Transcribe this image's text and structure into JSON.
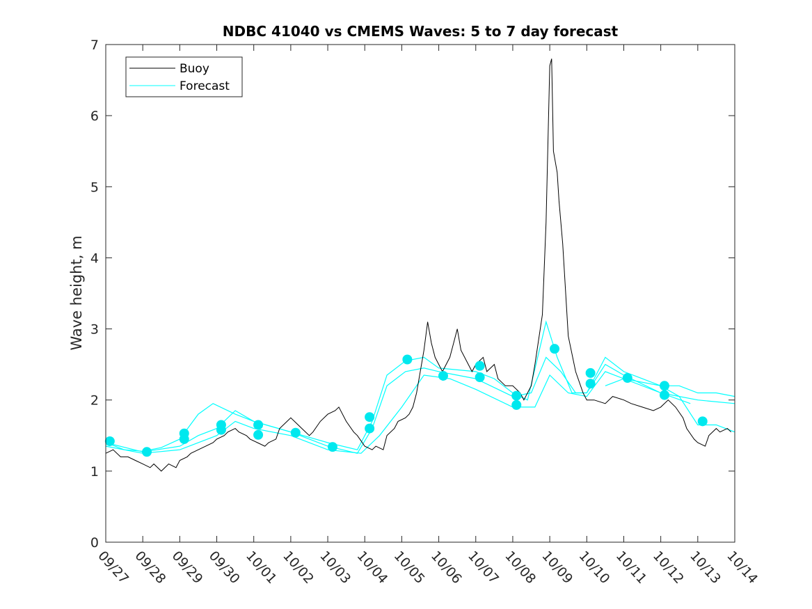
{
  "chart_data": {
    "type": "line",
    "title": "NDBC 41040 vs CMEMS Waves: 5 to 7 day forecast",
    "xlabel": "",
    "ylabel": "Wave height, m",
    "xlim": [
      0,
      17
    ],
    "ylim": [
      0,
      7
    ],
    "x_units": "days since 09/27",
    "xtick_labels": [
      "09/27",
      "09/28",
      "09/29",
      "09/30",
      "10/01",
      "10/02",
      "10/03",
      "10/04",
      "10/05",
      "10/06",
      "10/07",
      "10/08",
      "10/09",
      "10/10",
      "10/11",
      "10/12",
      "10/13",
      "10/14"
    ],
    "yticks": [
      0,
      1,
      2,
      3,
      4,
      5,
      6,
      7
    ],
    "grid": false,
    "legend": {
      "placement": "top-left",
      "entries": [
        "Buoy",
        "Forecast"
      ]
    },
    "colors": {
      "buoy": "#000000",
      "forecast": "#00ffff",
      "dots": "#00e8ee"
    },
    "buoy": {
      "name": "Buoy",
      "x": [
        0,
        0.2,
        0.4,
        0.6,
        0.8,
        1,
        1.2,
        1.3,
        1.5,
        1.7,
        1.9,
        2,
        2.2,
        2.3,
        2.5,
        2.7,
        2.9,
        3,
        3.2,
        3.3,
        3.5,
        3.6,
        3.8,
        3.9,
        4.1,
        4.3,
        4.4,
        4.6,
        4.7,
        4.9,
        5,
        5.2,
        5.3,
        5.5,
        5.6,
        5.8,
        6,
        6.2,
        6.3,
        6.5,
        6.7,
        6.8,
        7,
        7.2,
        7.3,
        7.5,
        7.6,
        7.8,
        7.9,
        8.1,
        8.2,
        8.3,
        8.4,
        8.5,
        8.6,
        8.7,
        8.8,
        8.9,
        9,
        9.1,
        9.3,
        9.4,
        9.5,
        9.6,
        9.8,
        9.9,
        10,
        10.2,
        10.3,
        10.5,
        10.6,
        10.8,
        11,
        11.2,
        11.3,
        11.5,
        11.6,
        11.8,
        11.9,
        12.0,
        12.05,
        12.1,
        12.2,
        12.25,
        12.35,
        12.5,
        12.7,
        12.9,
        13,
        13.2,
        13.5,
        13.7,
        14,
        14.2,
        14.5,
        14.8,
        15,
        15.2,
        15.4,
        15.6,
        15.7,
        15.9,
        16,
        16.2,
        16.3,
        16.5,
        16.6,
        16.8,
        16.9
      ],
      "y": [
        1.25,
        1.3,
        1.2,
        1.2,
        1.15,
        1.1,
        1.05,
        1.1,
        1.0,
        1.1,
        1.05,
        1.15,
        1.2,
        1.25,
        1.3,
        1.35,
        1.4,
        1.45,
        1.5,
        1.55,
        1.6,
        1.55,
        1.5,
        1.45,
        1.4,
        1.35,
        1.4,
        1.45,
        1.6,
        1.7,
        1.75,
        1.65,
        1.6,
        1.5,
        1.55,
        1.7,
        1.8,
        1.85,
        1.9,
        1.7,
        1.55,
        1.5,
        1.35,
        1.3,
        1.35,
        1.3,
        1.5,
        1.6,
        1.7,
        1.75,
        1.8,
        1.9,
        2.1,
        2.4,
        2.7,
        3.1,
        2.8,
        2.6,
        2.5,
        2.4,
        2.6,
        2.8,
        3.0,
        2.7,
        2.5,
        2.4,
        2.5,
        2.6,
        2.4,
        2.5,
        2.3,
        2.2,
        2.2,
        2.1,
        2.0,
        2.2,
        2.5,
        3.2,
        4.5,
        6.7,
        6.8,
        5.5,
        5.2,
        4.8,
        4.2,
        2.9,
        2.4,
        2.1,
        2.0,
        2.0,
        1.95,
        2.05,
        2.0,
        1.95,
        1.9,
        1.85,
        1.9,
        2.0,
        1.9,
        1.75,
        1.6,
        1.45,
        1.4,
        1.35,
        1.5,
        1.6,
        1.55,
        1.6,
        1.55
      ]
    },
    "forecast_series": [
      {
        "name": "Forecast",
        "x": [
          0,
          0.5,
          1,
          1.5,
          2,
          2.5,
          2.9,
          3.5,
          4,
          5,
          6,
          6.8,
          7.2,
          7.6,
          8.1,
          8.6,
          9,
          10,
          10.5,
          11,
          11.4,
          11.9,
          12.2,
          12.6,
          13,
          13.5,
          14,
          14.5,
          15,
          15.5,
          16,
          16.5,
          17
        ],
        "y": [
          1.4,
          1.3,
          1.28,
          1.33,
          1.45,
          1.8,
          1.95,
          1.8,
          1.7,
          1.55,
          1.4,
          1.3,
          1.7,
          2.35,
          2.55,
          2.6,
          2.45,
          2.4,
          2.3,
          2.1,
          2.0,
          3.1,
          2.6,
          2.1,
          2.1,
          2.6,
          2.4,
          2.3,
          2.2,
          2.2,
          2.1,
          2.1,
          2.05
        ]
      },
      {
        "name": "Forecast",
        "x": [
          0,
          1,
          2,
          2.5,
          3,
          3.5,
          4,
          5,
          6,
          6.8,
          7.2,
          7.6,
          8.1,
          8.6,
          9,
          10,
          11,
          11.5,
          11.9,
          12.3,
          12.7,
          13,
          13.5,
          14,
          15,
          16,
          17
        ],
        "y": [
          1.4,
          1.27,
          1.35,
          1.5,
          1.6,
          1.85,
          1.7,
          1.55,
          1.35,
          1.25,
          1.6,
          2.2,
          2.4,
          2.45,
          2.4,
          2.3,
          2.05,
          2.1,
          2.6,
          2.4,
          2.1,
          2.1,
          2.5,
          2.35,
          2.1,
          2.0,
          1.95
        ]
      },
      {
        "name": "Forecast",
        "x": [
          0,
          1,
          2,
          3,
          3.5,
          4,
          5,
          6,
          6.9,
          7.4,
          8,
          8.6,
          9.3,
          10,
          11,
          11.6,
          12,
          12.5,
          13,
          13.5,
          14,
          15,
          15.8
        ],
        "y": [
          1.35,
          1.25,
          1.3,
          1.5,
          1.7,
          1.6,
          1.5,
          1.3,
          1.25,
          1.5,
          1.9,
          2.35,
          2.3,
          2.15,
          1.9,
          1.9,
          2.35,
          2.1,
          2.05,
          2.4,
          2.3,
          2.1,
          1.95
        ]
      },
      {
        "name": "Forecast",
        "x": [
          13.5,
          14,
          15,
          15.5,
          16,
          16.5,
          17
        ],
        "y": [
          2.2,
          2.3,
          2.2,
          2.05,
          1.65,
          1.65,
          1.55
        ]
      }
    ],
    "forecast_points": {
      "x": [
        0.11,
        1.11,
        2.12,
        2.12,
        3.12,
        3.12,
        4.12,
        4.12,
        5.13,
        6.13,
        7.13,
        7.13,
        8.15,
        9.12,
        10.11,
        10.11,
        11.1,
        11.1,
        12.13,
        13.1,
        13.1,
        14.1,
        15.1,
        15.1,
        16.13
      ],
      "y": [
        1.42,
        1.27,
        1.53,
        1.45,
        1.65,
        1.58,
        1.65,
        1.51,
        1.54,
        1.34,
        1.76,
        1.6,
        2.57,
        2.34,
        2.48,
        2.32,
        2.06,
        1.93,
        2.72,
        2.38,
        2.23,
        2.31,
        2.2,
        2.07,
        1.7
      ]
    }
  }
}
